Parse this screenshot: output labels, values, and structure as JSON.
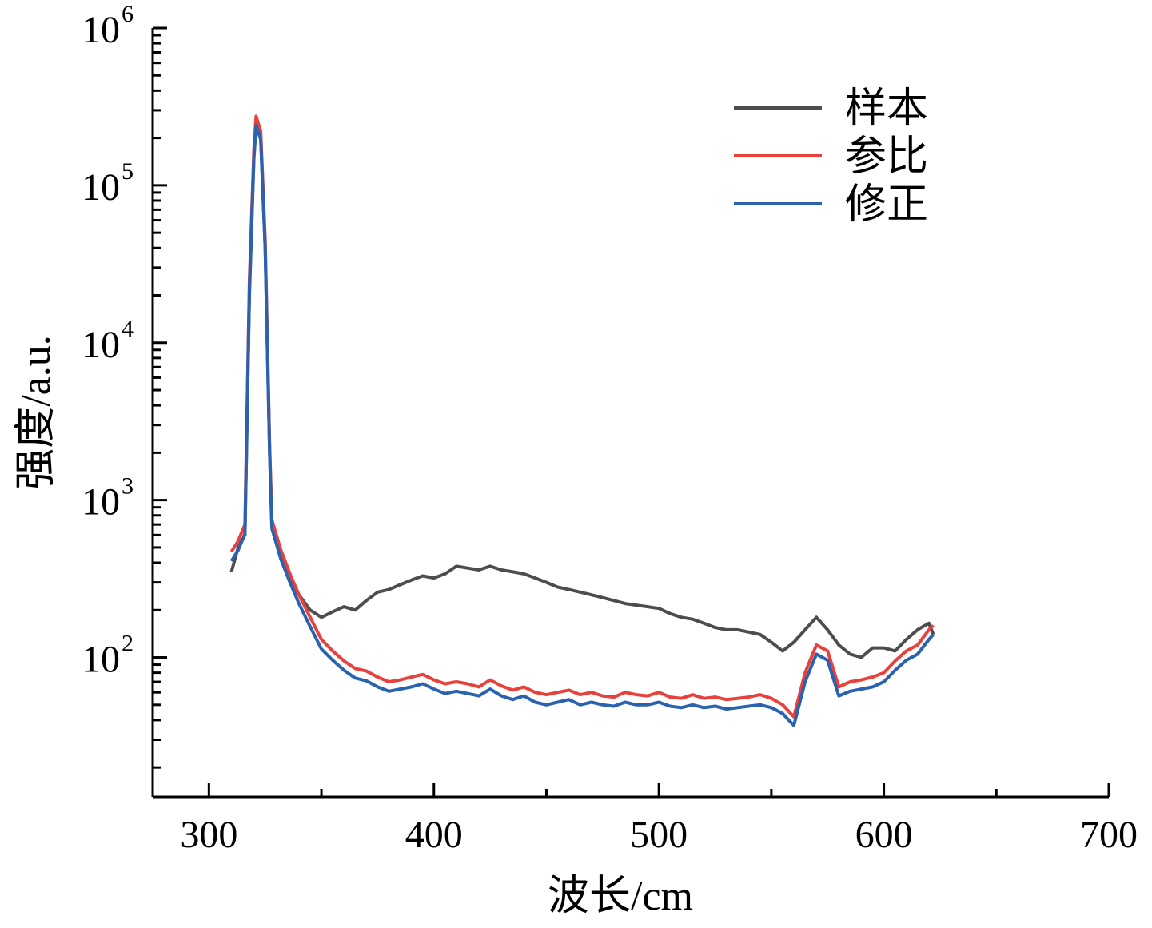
{
  "chart_data": {
    "type": "line",
    "title": "",
    "xlabel": "波长/cm",
    "ylabel": "强度/a.u.",
    "xlim": [
      275,
      700
    ],
    "ylim": [
      13,
      1000000
    ],
    "yscale": "log",
    "xticks": [
      300,
      400,
      500,
      600,
      700
    ],
    "xtick_labels": [
      "300",
      "400",
      "500",
      "600",
      "700"
    ],
    "xminor": [
      350,
      450,
      550,
      650
    ],
    "yticks": [
      100,
      1000,
      10000,
      100000,
      1000000
    ],
    "ytick_labels": [
      {
        "base": "10",
        "exp": "2"
      },
      {
        "base": "10",
        "exp": "3"
      },
      {
        "base": "10",
        "exp": "4"
      },
      {
        "base": "10",
        "exp": "5"
      },
      {
        "base": "10",
        "exp": "6"
      }
    ],
    "grid": false,
    "legend_position": "top-right",
    "x": [
      310,
      313,
      316,
      318,
      320,
      321,
      323,
      325,
      327,
      328,
      332,
      336,
      340,
      345,
      350,
      355,
      360,
      365,
      370,
      375,
      380,
      385,
      390,
      395,
      400,
      405,
      410,
      415,
      420,
      425,
      430,
      435,
      440,
      445,
      450,
      455,
      460,
      465,
      470,
      475,
      480,
      485,
      490,
      495,
      500,
      505,
      510,
      515,
      520,
      525,
      530,
      535,
      540,
      545,
      550,
      555,
      560,
      565,
      570,
      575,
      580,
      585,
      590,
      595,
      600,
      605,
      610,
      615,
      620,
      622
    ],
    "series": [
      {
        "name": "样本",
        "color": "#4d4d4d",
        "values": [
          350,
          500,
          600,
          20000,
          150000,
          250000,
          200000,
          40000,
          2000,
          700,
          450,
          320,
          250,
          200,
          180,
          195,
          210,
          200,
          230,
          260,
          270,
          290,
          310,
          330,
          320,
          340,
          380,
          370,
          360,
          380,
          360,
          350,
          340,
          320,
          300,
          280,
          270,
          260,
          250,
          240,
          230,
          220,
          215,
          210,
          205,
          190,
          180,
          175,
          165,
          155,
          150,
          150,
          145,
          140,
          125,
          110,
          125,
          150,
          180,
          150,
          120,
          105,
          100,
          115,
          115,
          110,
          130,
          150,
          165,
          140
        ]
      },
      {
        "name": "参比",
        "color": "#e8413c",
        "values": [
          470,
          550,
          700,
          25000,
          170000,
          275000,
          220000,
          45000,
          2200,
          750,
          480,
          340,
          250,
          180,
          130,
          110,
          95,
          85,
          82,
          75,
          70,
          72,
          75,
          78,
          72,
          68,
          70,
          68,
          65,
          72,
          66,
          62,
          65,
          60,
          58,
          60,
          62,
          58,
          60,
          57,
          56,
          60,
          58,
          57,
          60,
          56,
          55,
          58,
          55,
          56,
          54,
          55,
          56,
          58,
          55,
          50,
          42,
          80,
          120,
          110,
          65,
          70,
          72,
          75,
          80,
          95,
          110,
          120,
          150,
          160
        ]
      },
      {
        "name": "修正",
        "color": "#2a62b0",
        "values": [
          410,
          480,
          610,
          22000,
          150000,
          240000,
          195000,
          40000,
          1950,
          660,
          420,
          300,
          220,
          157,
          113,
          96,
          83,
          74,
          71,
          65,
          61,
          63,
          65,
          68,
          63,
          59,
          61,
          59,
          57,
          63,
          57,
          54,
          57,
          52,
          50,
          52,
          54,
          50,
          52,
          50,
          49,
          52,
          50,
          50,
          52,
          49,
          48,
          50,
          48,
          49,
          47,
          48,
          49,
          50,
          48,
          44,
          37,
          70,
          105,
          96,
          57,
          61,
          63,
          65,
          70,
          83,
          96,
          105,
          130,
          140
        ]
      }
    ]
  }
}
